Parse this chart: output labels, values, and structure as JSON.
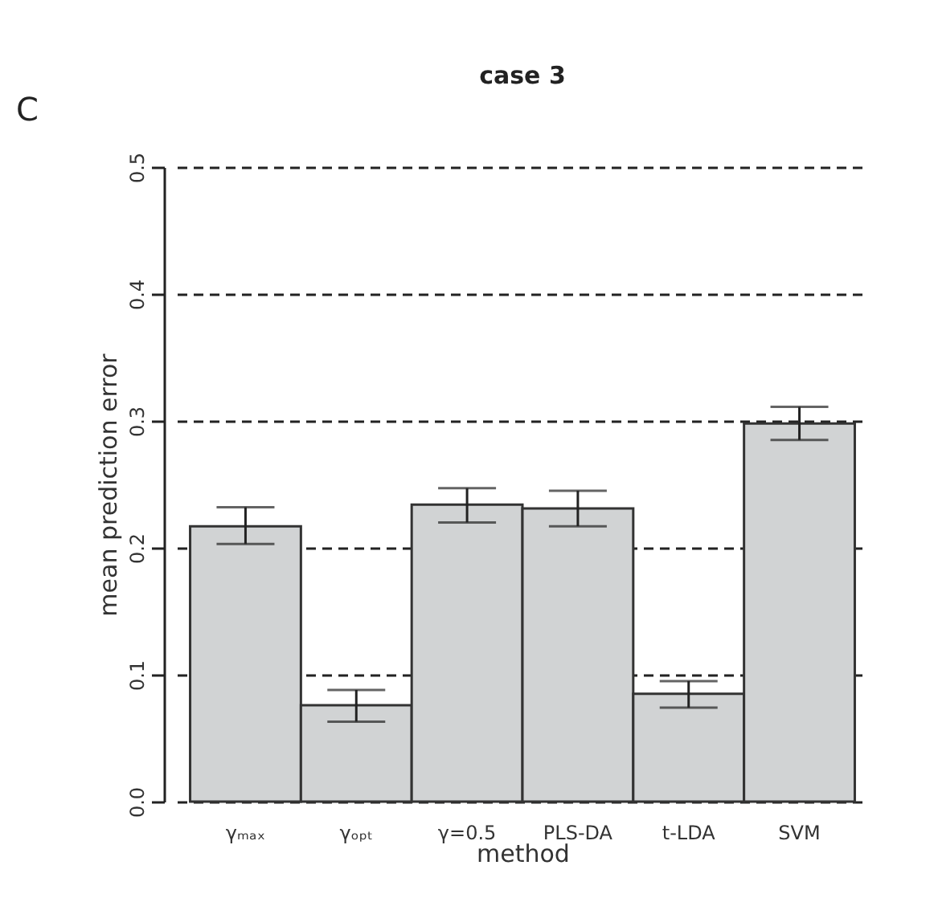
{
  "chart_data": {
    "type": "bar",
    "title": "case 3",
    "xlabel": "method",
    "ylabel": "mean prediction error",
    "annotations": [
      "C"
    ],
    "categories": [
      "γₘₐₓ",
      "γₒₚₜ",
      "γ=0.5",
      "PLS-DA",
      "t-LDA",
      "SVM"
    ],
    "values": [
      0.217,
      0.076,
      0.234,
      0.231,
      0.085,
      0.298
    ],
    "errors": [
      [
        0.203,
        0.232
      ],
      [
        0.063,
        0.088
      ],
      [
        0.22,
        0.247
      ],
      [
        0.217,
        0.245
      ],
      [
        0.074,
        0.095
      ],
      [
        0.285,
        0.311
      ]
    ],
    "color": "#d1d3d4",
    "ylim": [
      0,
      0.5
    ],
    "yticks": [
      {
        "value": 0,
        "label": "0.0"
      },
      0.1,
      0.2,
      0.3,
      0.4,
      0.5
    ],
    "grid": "y",
    "line_style": "dashed"
  }
}
